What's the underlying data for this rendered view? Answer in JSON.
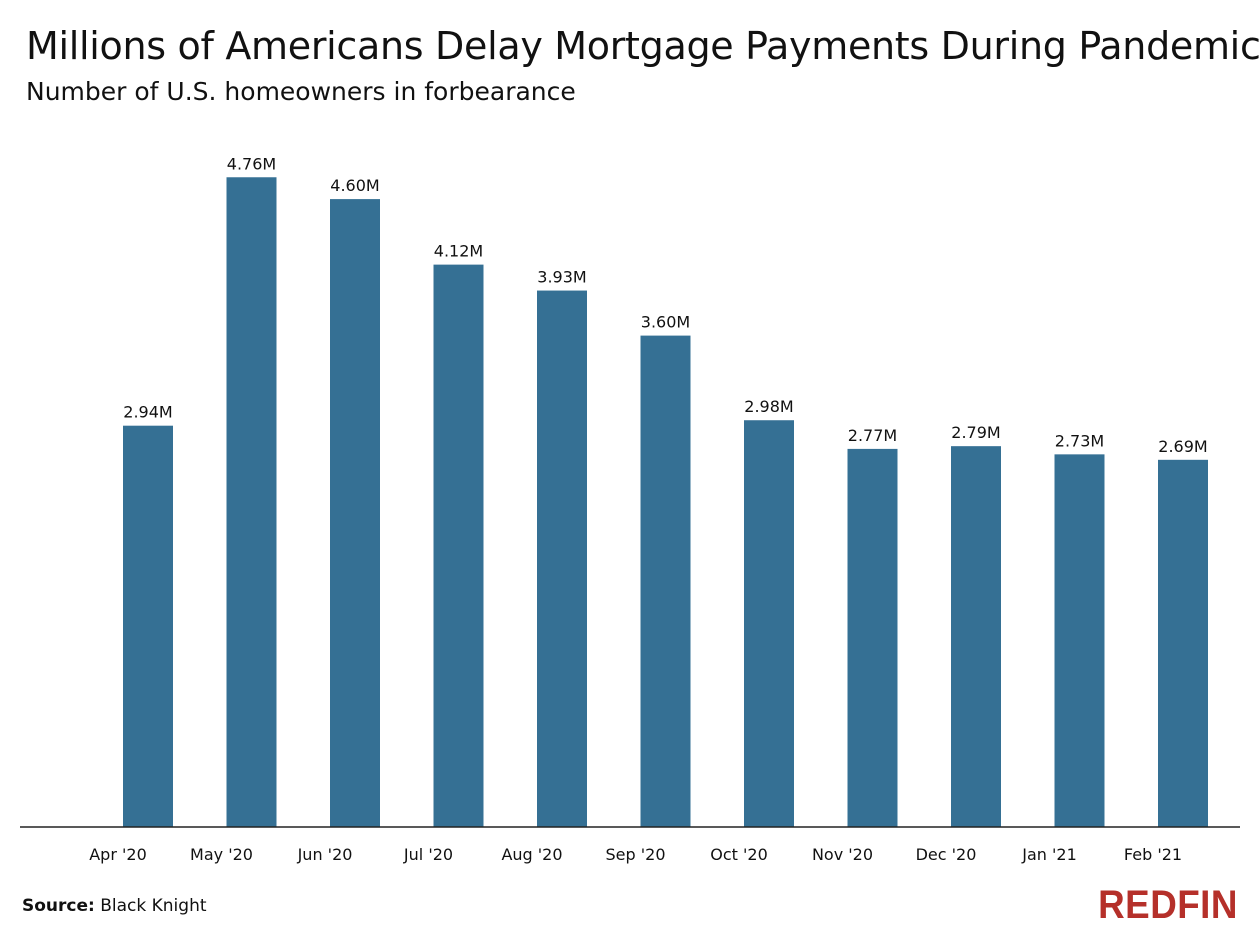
{
  "colors": {
    "bar": "#357094",
    "axis": "#222222",
    "logo": "#b5302a"
  },
  "source": {
    "label": "Source:",
    "value": "Black Knight"
  },
  "logo": {
    "text": "REDFIN"
  },
  "chart_data": {
    "type": "bar",
    "title": "Millions of Americans Delay Mortgage Payments During Pandemic",
    "subtitle": "Number of U.S. homeowners in forbearance",
    "xlabel": "",
    "ylabel": "",
    "categories": [
      "Apr '20",
      "May '20",
      "Jun '20",
      "Jul '20",
      "Aug '20",
      "Sep '20",
      "Oct '20",
      "Nov '20",
      "Dec '20",
      "Jan '21",
      "Feb '21"
    ],
    "values": [
      2.94,
      4.76,
      4.6,
      4.12,
      3.93,
      3.6,
      2.98,
      2.77,
      2.79,
      2.73,
      2.69
    ],
    "data_labels": [
      "2.94M",
      "4.76M",
      "4.60M",
      "4.12M",
      "3.93M",
      "3.60M",
      "2.98M",
      "2.77M",
      "2.79M",
      "2.73M",
      "2.69M"
    ],
    "units": "millions",
    "ylim": [
      0,
      5
    ],
    "grid": false,
    "legend": "none"
  }
}
